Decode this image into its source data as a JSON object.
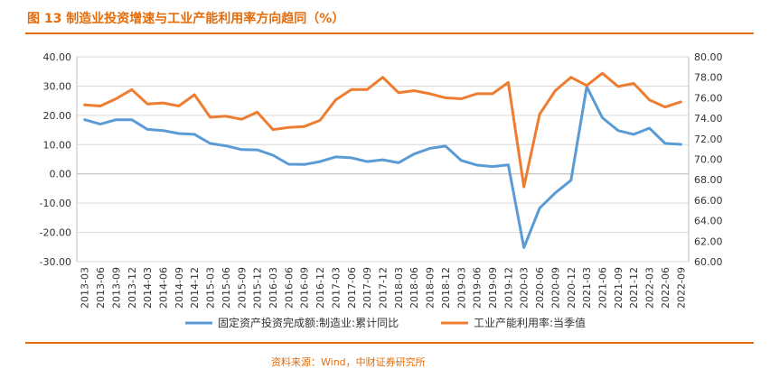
{
  "header": {
    "title": "图 13  制造业投资增速与工业产能利用率方向趋同（%）",
    "source": "资料来源：Wind，中财证券研究所"
  },
  "chart_data": {
    "type": "line",
    "x": [
      "2013-03",
      "2013-06",
      "2013-09",
      "2013-12",
      "2014-03",
      "2014-06",
      "2014-09",
      "2014-12",
      "2015-03",
      "2015-06",
      "2015-09",
      "2015-12",
      "2016-03",
      "2016-06",
      "2016-09",
      "2016-12",
      "2017-03",
      "2017-06",
      "2017-09",
      "2017-12",
      "2018-03",
      "2018-06",
      "2018-09",
      "2018-12",
      "2019-03",
      "2019-06",
      "2019-09",
      "2019-12",
      "2020-03",
      "2020-06",
      "2020-09",
      "2020-12",
      "2021-03",
      "2021-06",
      "2021-09",
      "2021-12",
      "2022-03",
      "2022-06",
      "2022-09"
    ],
    "series": [
      {
        "name": "固定资产投资完成额:制造业:累计同比",
        "axis": "left",
        "color": "#5b9bd5",
        "values": [
          18.5,
          17.0,
          18.5,
          18.5,
          15.2,
          14.8,
          13.8,
          13.5,
          10.4,
          9.6,
          8.3,
          8.2,
          6.4,
          3.3,
          3.2,
          4.2,
          5.8,
          5.5,
          4.2,
          4.8,
          3.8,
          6.8,
          8.7,
          9.5,
          4.6,
          3.0,
          2.5,
          3.1,
          -25.2,
          -11.7,
          -6.5,
          -2.2,
          29.8,
          19.2,
          14.8,
          13.5,
          15.6,
          10.4,
          10.1
        ]
      },
      {
        "name": "工业产能利用率:当季值",
        "axis": "right",
        "color": "#ed7d31",
        "values": [
          75.3,
          75.2,
          75.9,
          76.8,
          75.4,
          75.5,
          75.2,
          76.3,
          74.1,
          74.2,
          73.9,
          74.6,
          72.9,
          73.1,
          73.2,
          73.8,
          75.8,
          76.8,
          76.8,
          78.0,
          76.5,
          76.7,
          76.4,
          76.0,
          75.9,
          76.4,
          76.4,
          77.5,
          67.3,
          74.4,
          76.7,
          78.0,
          77.2,
          78.4,
          77.1,
          77.4,
          75.8,
          75.1,
          75.6
        ]
      }
    ],
    "left_axis": {
      "min": -30,
      "max": 40,
      "step": 10,
      "tick_labels": [
        "-30.00",
        "-20.00",
        "-10.00",
        "0.00",
        "10.00",
        "20.00",
        "30.00",
        "40.00"
      ]
    },
    "right_axis": {
      "min": 60,
      "max": 80,
      "step": 2,
      "tick_labels": [
        "60.00",
        "62.00",
        "64.00",
        "66.00",
        "68.00",
        "70.00",
        "72.00",
        "74.00",
        "76.00",
        "78.00",
        "80.00"
      ]
    },
    "grid": true,
    "legend_position": "bottom"
  }
}
